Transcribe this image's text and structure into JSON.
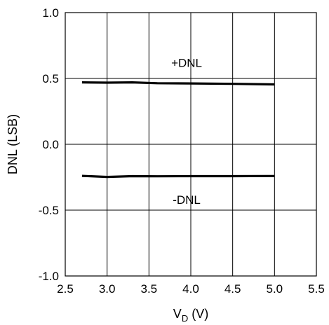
{
  "chart_data": {
    "type": "line",
    "xlabel": "V",
    "xlabel_sub": "D",
    "xlabel_unit": " (V)",
    "ylabel": "DNL (LSB)",
    "xlim": [
      2.5,
      5.5
    ],
    "ylim": [
      -1.0,
      1.0
    ],
    "x_ticks": [
      "2.5",
      "3.0",
      "3.5",
      "4.0",
      "4.5",
      "5.0",
      "5.5"
    ],
    "y_ticks": [
      "1.0",
      "0.5",
      "0.0",
      "-0.5",
      "-1.0"
    ],
    "grid": true,
    "annotations": [
      {
        "text": "+DNL",
        "x": 3.95,
        "y": 0.62
      },
      {
        "text": "-DNL",
        "x": 3.95,
        "y": -0.42
      }
    ],
    "series": [
      {
        "name": "+DNL",
        "x": [
          2.7,
          3.0,
          3.3,
          3.6,
          4.0,
          4.5,
          5.0
        ],
        "y": [
          0.47,
          0.468,
          0.47,
          0.464,
          0.462,
          0.459,
          0.455
        ]
      },
      {
        "name": "-DNL",
        "x": [
          2.7,
          3.0,
          3.3,
          3.6,
          4.0,
          4.5,
          5.0
        ],
        "y": [
          -0.24,
          -0.248,
          -0.242,
          -0.243,
          -0.242,
          -0.242,
          -0.241
        ]
      }
    ]
  }
}
